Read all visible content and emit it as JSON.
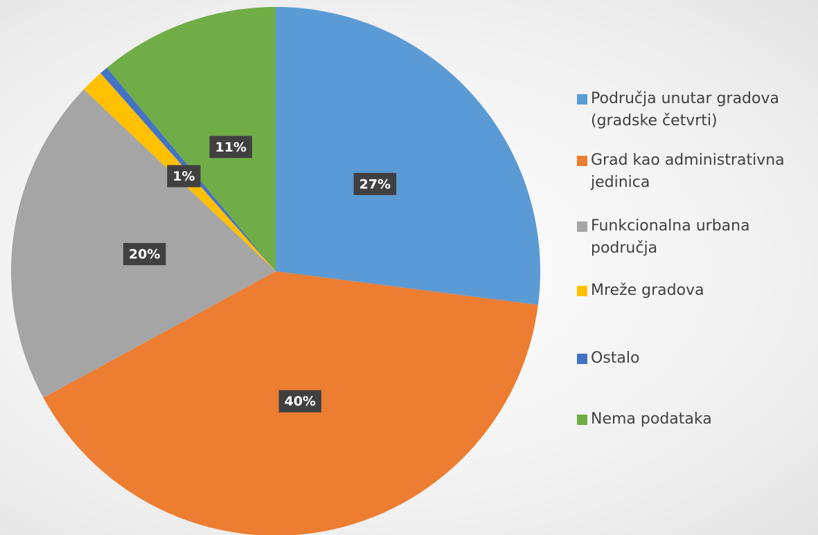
{
  "chart_data": {
    "type": "pie",
    "categories": [
      "Područja unutar gradova (gradske četvrti)",
      "Grad kao administrativna jedinica",
      "Funkcionalna urbana područja",
      "Mreže gradova",
      "Ostalo",
      "Nema podataka"
    ],
    "values": [
      27,
      40,
      20,
      1.4,
      0.5,
      11
    ],
    "value_labels": [
      "27%",
      "40%",
      "20%",
      "1%",
      null,
      "11%"
    ],
    "colors": [
      "#5b9bd5",
      "#ed7d31",
      "#a5a5a5",
      "#ffc000",
      "#4472c4",
      "#70ad47"
    ],
    "legend": "right"
  }
}
